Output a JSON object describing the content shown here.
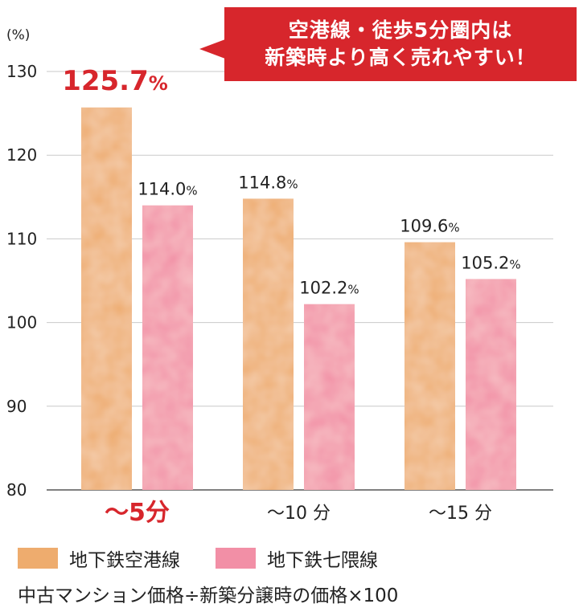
{
  "callout": {
    "line1": "空港線・徒歩5分圏内は",
    "line2": "新築時より高く売れやすい！",
    "color": "#d7262c"
  },
  "legend": {
    "items": [
      {
        "label": "地下鉄空港線",
        "color": "#eeac6e"
      },
      {
        "label": "地下鉄七隈線",
        "color": "#f28fa6"
      }
    ]
  },
  "note": "中古マンション価格÷新築分譲時の価格×100",
  "chart_data": {
    "type": "bar",
    "ylabel": "(%)",
    "ylim": [
      80,
      130
    ],
    "yticks": [
      80,
      90,
      100,
      110,
      120,
      130
    ],
    "grid": true,
    "highlight_color": "#d7262c",
    "categories": [
      "〜5分",
      "〜10 分",
      "〜15 分"
    ],
    "highlight_category": 0,
    "series": [
      {
        "name": "地下鉄空港線",
        "color": "#eeac6e",
        "values": [
          125.7,
          114.8,
          109.6
        ]
      },
      {
        "name": "地下鉄七隈線",
        "color": "#f28fa6",
        "values": [
          114.0,
          102.2,
          105.2
        ]
      }
    ],
    "value_labels": [
      [
        "125.7",
        "114.8",
        "109.6"
      ],
      [
        "114.0",
        "102.2",
        "105.2"
      ]
    ],
    "value_suffix": "%"
  }
}
